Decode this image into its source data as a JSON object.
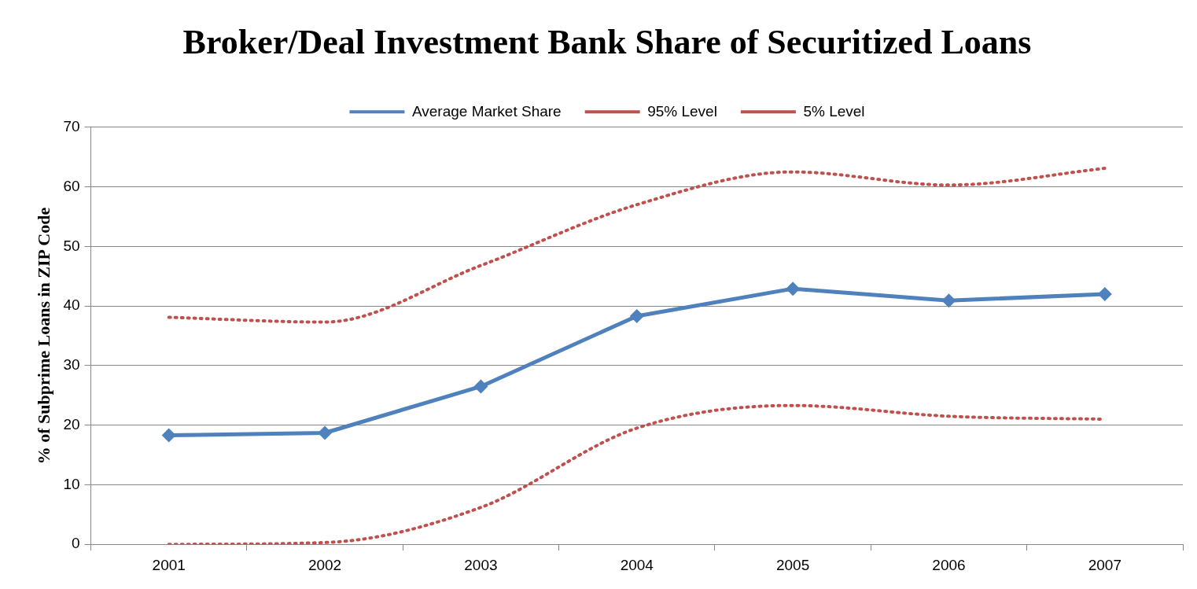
{
  "chart_data": {
    "type": "line",
    "title": "Broker/Deal Investment Bank Share of Securitized Loans",
    "ylabel": "% of Subprime Loans in ZIP Code",
    "categories": [
      "2001",
      "2002",
      "2003",
      "2004",
      "2005",
      "2006",
      "2007"
    ],
    "series": [
      {
        "name": "Average Market Share",
        "color": "#4f81bd",
        "marker": "diamond",
        "line_style": "solid",
        "values": [
          18.3,
          18.7,
          26.5,
          38.3,
          42.9,
          40.9,
          42.0
        ]
      },
      {
        "name": "95% Level",
        "color": "#c0504d",
        "marker": "none",
        "line_style": "dotted",
        "values": [
          38.1,
          37.3,
          46.8,
          57.0,
          62.5,
          60.3,
          63.1
        ]
      },
      {
        "name": "5% Level",
        "color": "#c0504d",
        "marker": "none",
        "line_style": "dotted",
        "values": [
          0,
          0.3,
          6.2,
          19.5,
          23.3,
          21.5,
          21.0
        ]
      }
    ],
    "ylim": [
      0,
      70
    ],
    "yticks": [
      0,
      10,
      20,
      30,
      40,
      50,
      60,
      70
    ],
    "grid": "y",
    "legend": "top"
  }
}
